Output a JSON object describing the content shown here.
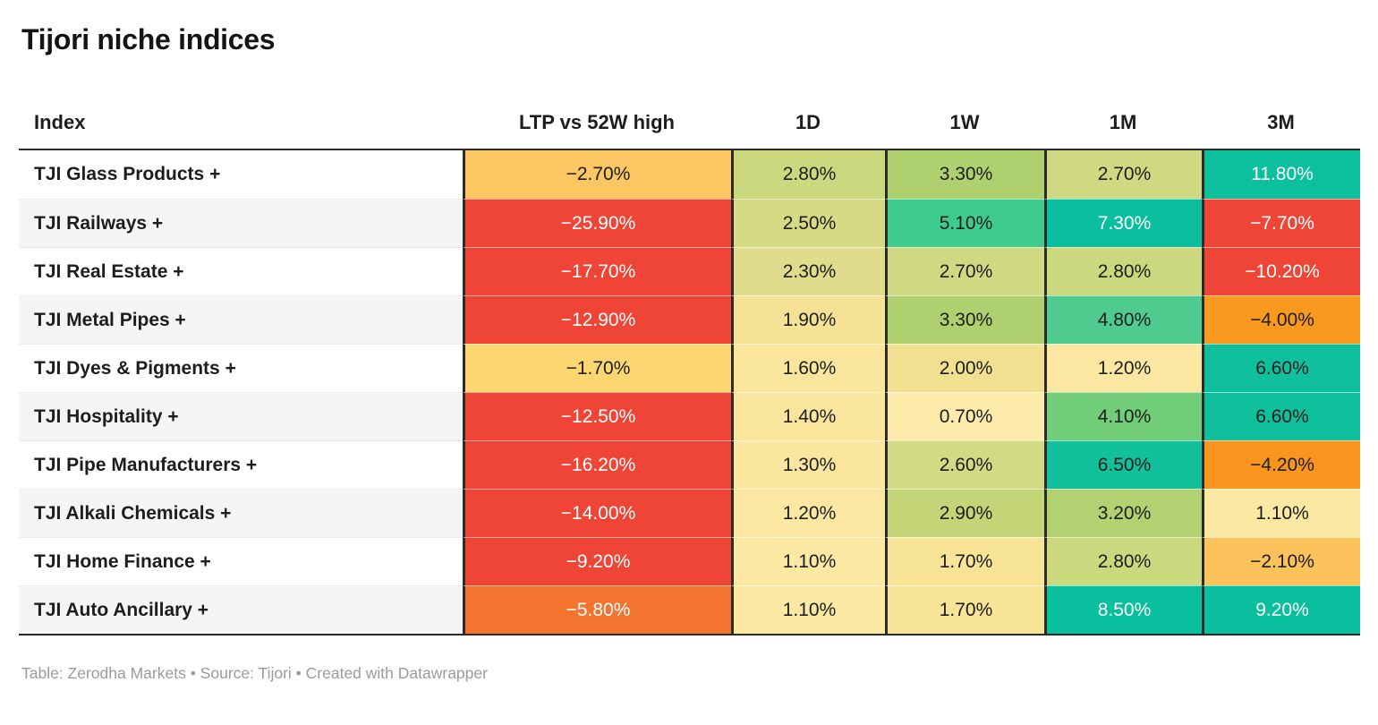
{
  "title": "Tijori niche indices",
  "footer": "Table: Zerodha Markets • Source: Tijori • Created with Datawrapper",
  "table": {
    "columns": [
      "Index",
      "LTP vs 52W high",
      "1D",
      "1W",
      "1M",
      "3M"
    ],
    "rows": [
      {
        "name": "TJI Glass Products +",
        "cells": [
          {
            "v": "−2.70%",
            "bg": "#fcc662",
            "fg": "#1d1d1d"
          },
          {
            "v": "2.80%",
            "bg": "#ccd87d",
            "fg": "#1d1d1d"
          },
          {
            "v": "3.30%",
            "bg": "#aed06e",
            "fg": "#1d1d1d"
          },
          {
            "v": "2.70%",
            "bg": "#cfd981",
            "fg": "#1d1d1d"
          },
          {
            "v": "11.80%",
            "bg": "#0cbf9d",
            "fg": "#ffffff"
          }
        ]
      },
      {
        "name": "TJI Railways +",
        "cells": [
          {
            "v": "−25.90%",
            "bg": "#ee4536",
            "fg": "#ffffff"
          },
          {
            "v": "2.50%",
            "bg": "#d6da85",
            "fg": "#1d1d1d"
          },
          {
            "v": "5.10%",
            "bg": "#3ecb8d",
            "fg": "#1d1d1d"
          },
          {
            "v": "7.30%",
            "bg": "#0bbf9e",
            "fg": "#ffffff"
          },
          {
            "v": "−7.70%",
            "bg": "#ee4536",
            "fg": "#ffffff"
          }
        ]
      },
      {
        "name": "TJI Real Estate +",
        "cells": [
          {
            "v": "−17.70%",
            "bg": "#ee4536",
            "fg": "#ffffff"
          },
          {
            "v": "2.30%",
            "bg": "#dfdd8c",
            "fg": "#1d1d1d"
          },
          {
            "v": "2.70%",
            "bg": "#cfd981",
            "fg": "#1d1d1d"
          },
          {
            "v": "2.80%",
            "bg": "#ccd87d",
            "fg": "#1d1d1d"
          },
          {
            "v": "−10.20%",
            "bg": "#ee4536",
            "fg": "#ffffff"
          }
        ]
      },
      {
        "name": "TJI Metal Pipes +",
        "cells": [
          {
            "v": "−12.90%",
            "bg": "#ee4536",
            "fg": "#ffffff"
          },
          {
            "v": "1.90%",
            "bg": "#f6e294",
            "fg": "#1d1d1d"
          },
          {
            "v": "3.30%",
            "bg": "#aed06e",
            "fg": "#1d1d1d"
          },
          {
            "v": "4.80%",
            "bg": "#4fcb8f",
            "fg": "#1d1d1d"
          },
          {
            "v": "−4.00%",
            "bg": "#f9991d",
            "fg": "#1d1d1d"
          }
        ]
      },
      {
        "name": "TJI Dyes & Pigments +",
        "cells": [
          {
            "v": "−1.70%",
            "bg": "#fbd671",
            "fg": "#1d1d1d"
          },
          {
            "v": "1.60%",
            "bg": "#f9e59b",
            "fg": "#1d1d1d"
          },
          {
            "v": "2.00%",
            "bg": "#f0e090",
            "fg": "#1d1d1d"
          },
          {
            "v": "1.20%",
            "bg": "#fbe7a1",
            "fg": "#1d1d1d"
          },
          {
            "v": "6.60%",
            "bg": "#10c09c",
            "fg": "#1d1d1d"
          }
        ]
      },
      {
        "name": "TJI Hospitality +",
        "cells": [
          {
            "v": "−12.50%",
            "bg": "#ee4536",
            "fg": "#ffffff"
          },
          {
            "v": "1.40%",
            "bg": "#fae59c",
            "fg": "#1d1d1d"
          },
          {
            "v": "0.70%",
            "bg": "#fcebaa",
            "fg": "#1d1d1d"
          },
          {
            "v": "4.10%",
            "bg": "#72cd78",
            "fg": "#1d1d1d"
          },
          {
            "v": "6.60%",
            "bg": "#10c09c",
            "fg": "#1d1d1d"
          }
        ]
      },
      {
        "name": "TJI Pipe Manufacturers +",
        "cells": [
          {
            "v": "−16.20%",
            "bg": "#ee4536",
            "fg": "#ffffff"
          },
          {
            "v": "1.30%",
            "bg": "#fae69e",
            "fg": "#1d1d1d"
          },
          {
            "v": "2.60%",
            "bg": "#d3da84",
            "fg": "#1d1d1d"
          },
          {
            "v": "6.50%",
            "bg": "#12c09b",
            "fg": "#1d1d1d"
          },
          {
            "v": "−4.20%",
            "bg": "#f9951e",
            "fg": "#1d1d1d"
          }
        ]
      },
      {
        "name": "TJI Alkali Chemicals +",
        "cells": [
          {
            "v": "−14.00%",
            "bg": "#ee4536",
            "fg": "#ffffff"
          },
          {
            "v": "1.20%",
            "bg": "#fbe7a1",
            "fg": "#1d1d1d"
          },
          {
            "v": "2.90%",
            "bg": "#c4d578",
            "fg": "#1d1d1d"
          },
          {
            "v": "3.20%",
            "bg": "#b2d271",
            "fg": "#1d1d1d"
          },
          {
            "v": "1.10%",
            "bg": "#fbe8a3",
            "fg": "#1d1d1d"
          }
        ]
      },
      {
        "name": "TJI Home Finance +",
        "cells": [
          {
            "v": "−9.20%",
            "bg": "#ee4536",
            "fg": "#ffffff"
          },
          {
            "v": "1.10%",
            "bg": "#fbe8a3",
            "fg": "#1d1d1d"
          },
          {
            "v": "1.70%",
            "bg": "#f8e497",
            "fg": "#1d1d1d"
          },
          {
            "v": "2.80%",
            "bg": "#ccd87d",
            "fg": "#1d1d1d"
          },
          {
            "v": "−2.10%",
            "bg": "#fcc35c",
            "fg": "#1d1d1d"
          }
        ]
      },
      {
        "name": "TJI Auto Ancillary +",
        "cells": [
          {
            "v": "−5.80%",
            "bg": "#f3742e",
            "fg": "#ffffff"
          },
          {
            "v": "1.10%",
            "bg": "#fbe8a3",
            "fg": "#1d1d1d"
          },
          {
            "v": "1.70%",
            "bg": "#f8e497",
            "fg": "#1d1d1d"
          },
          {
            "v": "8.50%",
            "bg": "#0abf9e",
            "fg": "#ffffff"
          },
          {
            "v": "9.20%",
            "bg": "#0abf9e",
            "fg": "#ffffff"
          }
        ]
      }
    ]
  },
  "chart_data": {
    "type": "table",
    "title": "Tijori niche indices",
    "columns": [
      "Index",
      "LTP vs 52W high",
      "1D",
      "1W",
      "1M",
      "3M"
    ],
    "rows": [
      [
        "TJI Glass Products +",
        -2.7,
        2.8,
        3.3,
        2.7,
        11.8
      ],
      [
        "TJI Railways +",
        -25.9,
        2.5,
        5.1,
        7.3,
        -7.7
      ],
      [
        "TJI Real Estate +",
        -17.7,
        2.3,
        2.7,
        2.8,
        -10.2
      ],
      [
        "TJI Metal Pipes +",
        -12.9,
        1.9,
        3.3,
        4.8,
        -4.0
      ],
      [
        "TJI Dyes & Pigments +",
        -1.7,
        1.6,
        2.0,
        1.2,
        6.6
      ],
      [
        "TJI Hospitality +",
        -12.5,
        1.4,
        0.7,
        4.1,
        6.6
      ],
      [
        "TJI Pipe Manufacturers +",
        -16.2,
        1.3,
        2.6,
        6.5,
        -4.2
      ],
      [
        "TJI Alkali Chemicals +",
        -14.0,
        1.2,
        2.9,
        3.2,
        1.1
      ],
      [
        "TJI Home Finance +",
        -9.2,
        1.1,
        1.7,
        2.8,
        -2.1
      ],
      [
        "TJI Auto Ancillary +",
        -5.8,
        1.1,
        1.7,
        8.5,
        9.2
      ]
    ],
    "units": "percent",
    "color_scale": "diverging red-yellow-green-teal heatmap, negative=red/orange, positive=green/teal",
    "legend_position": "none",
    "grid": "off"
  },
  "colors": {
    "negative_strong": "#ee4536",
    "negative_mid": "#f3742e",
    "negative_soft": "#fcc35c",
    "positive_soft": "#fbe8a3",
    "positive_mid": "#aed06e",
    "positive_strong": "#0abf9e",
    "border_dark": "#2b2b2b",
    "footer_text": "#9b9b9b"
  }
}
